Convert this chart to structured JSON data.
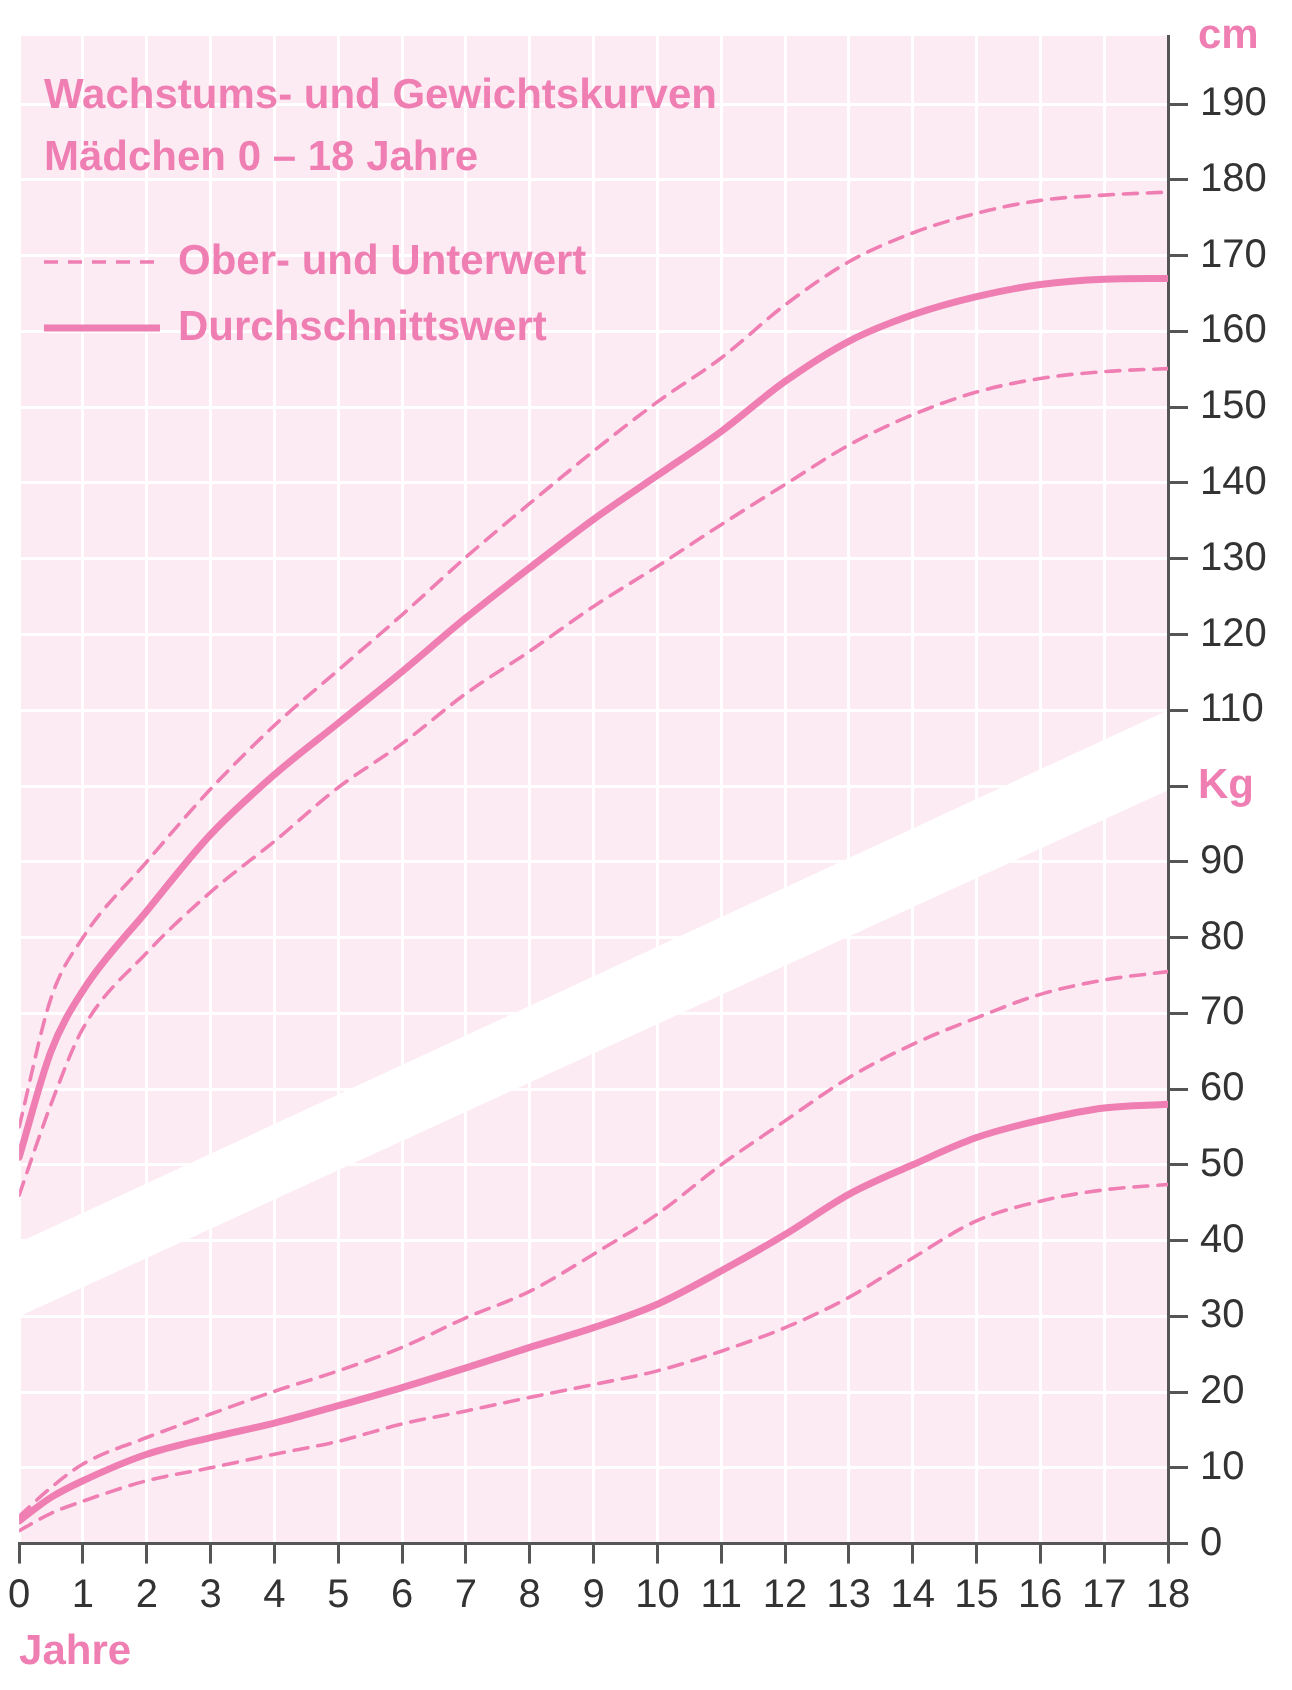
{
  "chart_data": {
    "type": "line",
    "title": "Wachstums- und Gewichtskurven",
    "subtitle": "Mädchen 0 – 18 Jahre",
    "xlabel": "Jahre",
    "ylabel": "Kg",
    "y2label": "cm",
    "x": [
      0,
      0.5,
      1,
      2,
      3,
      4,
      5,
      6,
      7,
      8,
      9,
      10,
      11,
      12,
      13,
      14,
      15,
      16,
      17,
      18
    ],
    "series": [
      {
        "name": "Ober- und Unterwert",
        "color": "#ef7fb3",
        "line_style": "dashed",
        "values": [
          55,
          72,
          80,
          90,
          99.6,
          108,
          115.3,
          122.6,
          130.2,
          137.3,
          144.2,
          150.7,
          156.5,
          163.5,
          169.2,
          173,
          175.6,
          177.3,
          178,
          178.4
        ]
      },
      {
        "name": "Durchschnittswert",
        "color": "#ef7fb3",
        "line_style": "solid",
        "values": [
          51,
          65,
          73,
          83.5,
          93.6,
          101.5,
          108.3,
          115.1,
          122.2,
          128.8,
          135.2,
          141,
          146.8,
          153.4,
          158.7,
          162.2,
          164.6,
          166.2,
          166.9,
          167
        ]
      },
      {
        "color": "#ef7fb3",
        "line_style": "dashed",
        "values": [
          46,
          58,
          68,
          78,
          86,
          92.7,
          99.8,
          105.6,
          112.2,
          117.8,
          123.7,
          129,
          134.5,
          139.8,
          145,
          149,
          152,
          153.8,
          154.7,
          155.1
        ]
      },
      {
        "color": "#ef7fb3",
        "line_style": "dashed",
        "values": [
          3.6,
          7.4,
          10.5,
          14,
          17.1,
          20.1,
          22.8,
          25.9,
          29.8,
          33.3,
          38.2,
          43.5,
          50,
          55.8,
          61.5,
          65.9,
          69.4,
          72.5,
          74.4,
          75.5
        ]
      },
      {
        "color": "#ef7fb3",
        "line_style": "solid",
        "values": [
          3,
          6.1,
          8.3,
          11.8,
          14,
          15.9,
          18.2,
          20.6,
          23.2,
          25.9,
          28.5,
          31.6,
          36,
          40.8,
          46.1,
          50,
          53.6,
          55.9,
          57.5,
          58
        ]
      },
      {
        "color": "#ef7fb3",
        "line_style": "dashed",
        "values": [
          1.7,
          4,
          5.6,
          8.3,
          10,
          11.8,
          13.5,
          15.8,
          17.5,
          19.3,
          21,
          22.8,
          25.4,
          28.5,
          32.5,
          37.7,
          42.6,
          45.2,
          46.7,
          47.4
        ]
      }
    ],
    "xlim": [
      0,
      18
    ],
    "xticks": [
      0,
      1,
      2,
      3,
      4,
      5,
      6,
      7,
      8,
      9,
      10,
      11,
      12,
      13,
      14,
      15,
      16,
      17,
      18
    ],
    "ylim": [
      0,
      199
    ],
    "yticks": [
      0,
      10,
      20,
      30,
      40,
      50,
      60,
      70,
      80,
      90,
      {
        "value": 100,
        "label": null
      }
    ],
    "y2lim": [
      0,
      199
    ],
    "y2ticks": [
      110,
      120,
      130,
      140,
      150,
      160,
      170,
      180,
      190
    ],
    "grid": true,
    "legend": "top left",
    "marker": "none"
  }
}
